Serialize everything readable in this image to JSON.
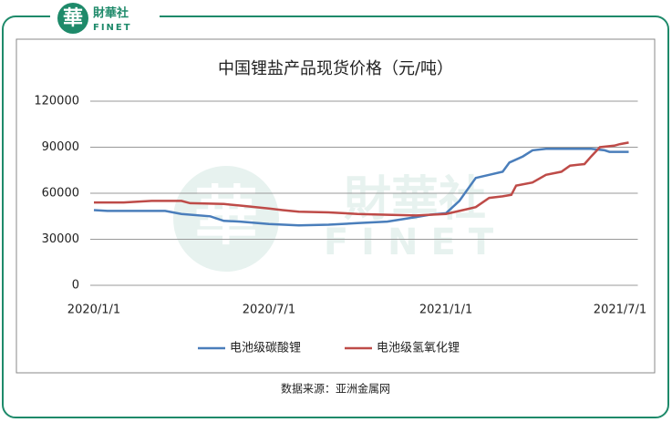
{
  "logo": {
    "mark": "華",
    "name": "財華社",
    "latin": "FINET"
  },
  "chart_data": {
    "type": "line",
    "title": "中国锂盐产品现货价格（元/吨）",
    "xlim": [
      "2020/1/1",
      "2021/7/10"
    ],
    "xticks": [
      "2020/1/1",
      "2020/7/1",
      "2021/1/1",
      "2021/7/1"
    ],
    "ylim": [
      0,
      120000
    ],
    "yticks": [
      0,
      30000,
      60000,
      90000,
      120000
    ],
    "grid": true,
    "legend": "bottom",
    "series": [
      {
        "name": "电池级碳酸锂",
        "color": "#4a7ebb",
        "x": [
          "2020/1/1",
          "2020/1/15",
          "2020/3/15",
          "2020/4/1",
          "2020/5/1",
          "2020/5/15",
          "2020/6/1",
          "2020/7/1",
          "2020/8/1",
          "2020/9/1",
          "2020/10/1",
          "2020/11/1",
          "2020/12/1",
          "2020/12/15",
          "2021/1/1",
          "2021/1/15",
          "2021/2/1",
          "2021/2/15",
          "2021/3/1",
          "2021/3/8",
          "2021/3/22",
          "2021/4/1",
          "2021/4/15",
          "2021/6/1",
          "2021/6/15",
          "2021/6/20",
          "2021/7/10"
        ],
        "values": [
          49000,
          48500,
          48500,
          46500,
          45000,
          42000,
          41500,
          40000,
          39000,
          39500,
          40500,
          41500,
          44500,
          46000,
          47000,
          55000,
          70000,
          72000,
          74000,
          80000,
          84000,
          88000,
          89000,
          89000,
          88000,
          87000,
          87000
        ]
      },
      {
        "name": "电池级氢氧化锂",
        "color": "#be4b48",
        "x": [
          "2020/1/1",
          "2020/2/1",
          "2020/3/1",
          "2020/4/1",
          "2020/4/10",
          "2020/5/15",
          "2020/6/1",
          "2020/7/1",
          "2020/7/15",
          "2020/8/1",
          "2020/9/1",
          "2020/10/1",
          "2020/11/1",
          "2020/12/1",
          "2021/1/1",
          "2021/1/15",
          "2021/2/1",
          "2021/2/15",
          "2021/3/1",
          "2021/3/10",
          "2021/3/15",
          "2021/4/1",
          "2021/4/15",
          "2021/5/1",
          "2021/5/10",
          "2021/5/25",
          "2021/6/1",
          "2021/6/10",
          "2021/6/25",
          "2021/7/1",
          "2021/7/10"
        ],
        "values": [
          54000,
          54000,
          55000,
          55000,
          53500,
          53000,
          52000,
          50000,
          49000,
          48000,
          47500,
          46500,
          46000,
          45500,
          46500,
          48500,
          51000,
          57000,
          58000,
          59000,
          65000,
          67000,
          72000,
          74000,
          78000,
          79000,
          84000,
          90000,
          91000,
          92000,
          93000
        ]
      }
    ],
    "source": "数据来源：亚洲金属网"
  }
}
